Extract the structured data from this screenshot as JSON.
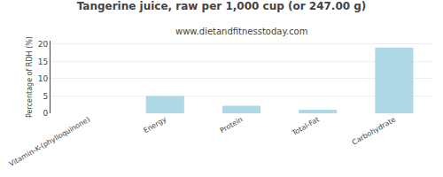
{
  "chart_data": {
    "type": "bar",
    "title": "Tangerine juice, raw per 1,000 cup (or 247.00 g)",
    "subtitle": "www.dietandfitnesstoday.com",
    "categories": [
      "Vitamin-K-(phylloquinone)",
      "Energy",
      "Protein",
      "Total-Fat",
      "Carbohydrate"
    ],
    "values": [
      0.0,
      5.0,
      2.2,
      1.0,
      19.0
    ],
    "color": "#add8e6",
    "ylabel": "Percentage of RDH (%)",
    "ylim": [
      0,
      21
    ],
    "yticks": [
      0,
      5,
      10,
      15,
      20
    ],
    "grid": true
  }
}
